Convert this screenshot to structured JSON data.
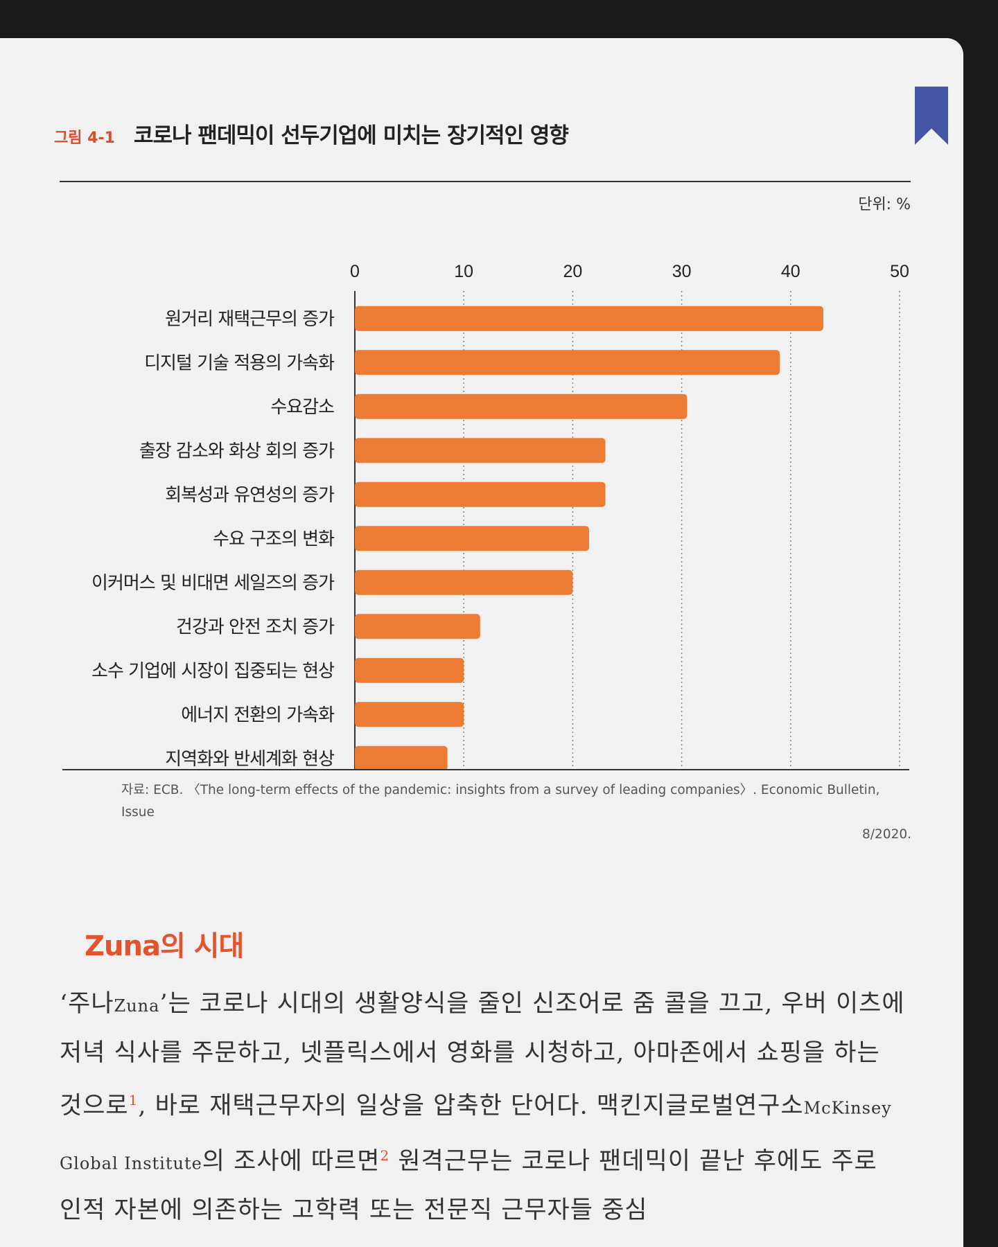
{
  "figure": {
    "number": "그림 4-1",
    "title": "코로나 팬데믹이 선두기업에 미치는 장기적인 영향",
    "unit": "단위: %"
  },
  "chart_data": {
    "type": "bar",
    "orientation": "horizontal",
    "title": "코로나 팬데믹이 선두기업에 미치는 장기적인 영향",
    "xlim": [
      0,
      50
    ],
    "xticks": [
      "0",
      "10",
      "20",
      "30",
      "40",
      "50"
    ],
    "grid": "dotted vertical",
    "bar_color": "#ec7b33",
    "categories": [
      "원거리 재택근무의 증가",
      "디지털 기술 적용의 가속화",
      "수요감소",
      "출장 감소와 화상 회의 증가",
      "회복성과 유연성의 증가",
      "수요 구조의 변화",
      "이커머스 및 비대면 세일즈의 증가",
      "건강과 안전 조치 증가",
      "소수 기업에 시장이 집중되는 현상",
      "에너지 전환의 가속화",
      "지역화와 반세계화 현상"
    ],
    "values": [
      43,
      39,
      30.5,
      23,
      23,
      21.5,
      20,
      11.5,
      10,
      10,
      8.5
    ]
  },
  "source": {
    "line1": "자료: ECB. 〈The long-term effects of the pandemic: insights from a survey of leading companies〉. Economic Bulletin, Issue",
    "line2": "8/2020."
  },
  "section": {
    "heading": "Zuna의 시대"
  },
  "body": {
    "p1_a": "‘주나",
    "p1_b": "Zuna",
    "p1_c": "’는 코로나 시대의 생활양식을 줄인 신조어로 줌 콜을 끄고, 우버 이츠에 저녁 식사를 주문하고, 넷플릭스에서 영화를 시청하고, 아마존에서 쇼핑을 하는 것으로",
    "fn1": "1",
    "p1_d": ", 바로 재택근무자의 일상을 압축한 단어다. 맥킨지글로벌연구소",
    "p1_e": "McKinsey Global Institute",
    "p1_f": "의 조사에 따르면",
    "fn2": "2",
    "p1_g": " 원격근무는 코로나 팬데믹이 끝난 후에도 주로 인적 자본에 의존하는 고학력 또는 전문직 근무자들 중심"
  }
}
